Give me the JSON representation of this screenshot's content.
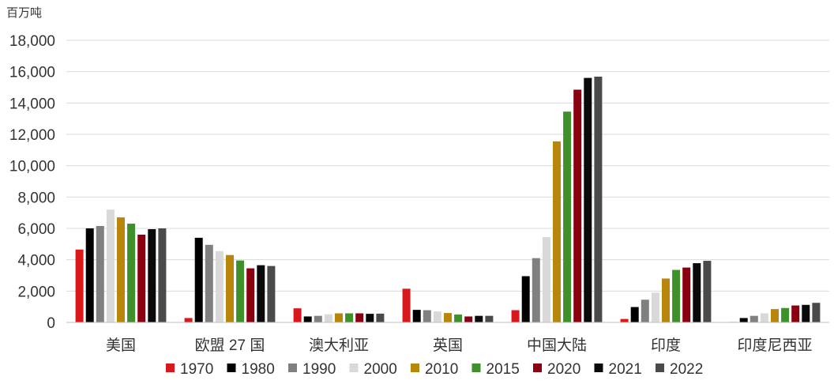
{
  "chart_data": {
    "type": "bar",
    "title": "",
    "unit_label": "百万吨",
    "xlabel": "",
    "ylabel": "",
    "ylim": [
      0,
      18000
    ],
    "yticks": [
      0,
      2000,
      4000,
      6000,
      8000,
      10000,
      12000,
      14000,
      16000,
      18000
    ],
    "ytick_labels": [
      "0",
      "2,000",
      "4,000",
      "6,000",
      "8,000",
      "10,000",
      "12,000",
      "14,000",
      "16,000",
      "18,000"
    ],
    "grid": true,
    "legend_position": "bottom",
    "categories": [
      "美国",
      "欧盟 27 国",
      "澳大利亚",
      "英国",
      "中国大陆",
      "印度",
      "印度尼西亚"
    ],
    "series": [
      {
        "name": "1970",
        "color": "#d7191c",
        "values": [
          4650,
          280,
          900,
          2150,
          780,
          220,
          30
        ]
      },
      {
        "name": "1980",
        "color": "#000000",
        "values": [
          6000,
          5400,
          380,
          800,
          2950,
          980,
          280
        ]
      },
      {
        "name": "1990",
        "color": "#808080",
        "values": [
          6150,
          4950,
          420,
          780,
          4100,
          1450,
          420
        ]
      },
      {
        "name": "2000",
        "color": "#d9d9d9",
        "values": [
          7200,
          4550,
          520,
          700,
          5450,
          1900,
          580
        ]
      },
      {
        "name": "2010",
        "color": "#b8860b",
        "values": [
          6700,
          4300,
          580,
          600,
          11550,
          2800,
          850
        ]
      },
      {
        "name": "2015",
        "color": "#3f8f2a",
        "values": [
          6300,
          3950,
          580,
          500,
          13450,
          3350,
          920
        ]
      },
      {
        "name": "2020",
        "color": "#8b0011",
        "values": [
          5600,
          3450,
          580,
          380,
          14850,
          3500,
          1080
        ]
      },
      {
        "name": "2021",
        "color": "#0a0a0a",
        "values": [
          5950,
          3650,
          550,
          420,
          15600,
          3780,
          1120
        ]
      },
      {
        "name": "2022",
        "color": "#4a4a4a",
        "values": [
          6000,
          3600,
          560,
          420,
          15680,
          3930,
          1250
        ]
      }
    ]
  }
}
